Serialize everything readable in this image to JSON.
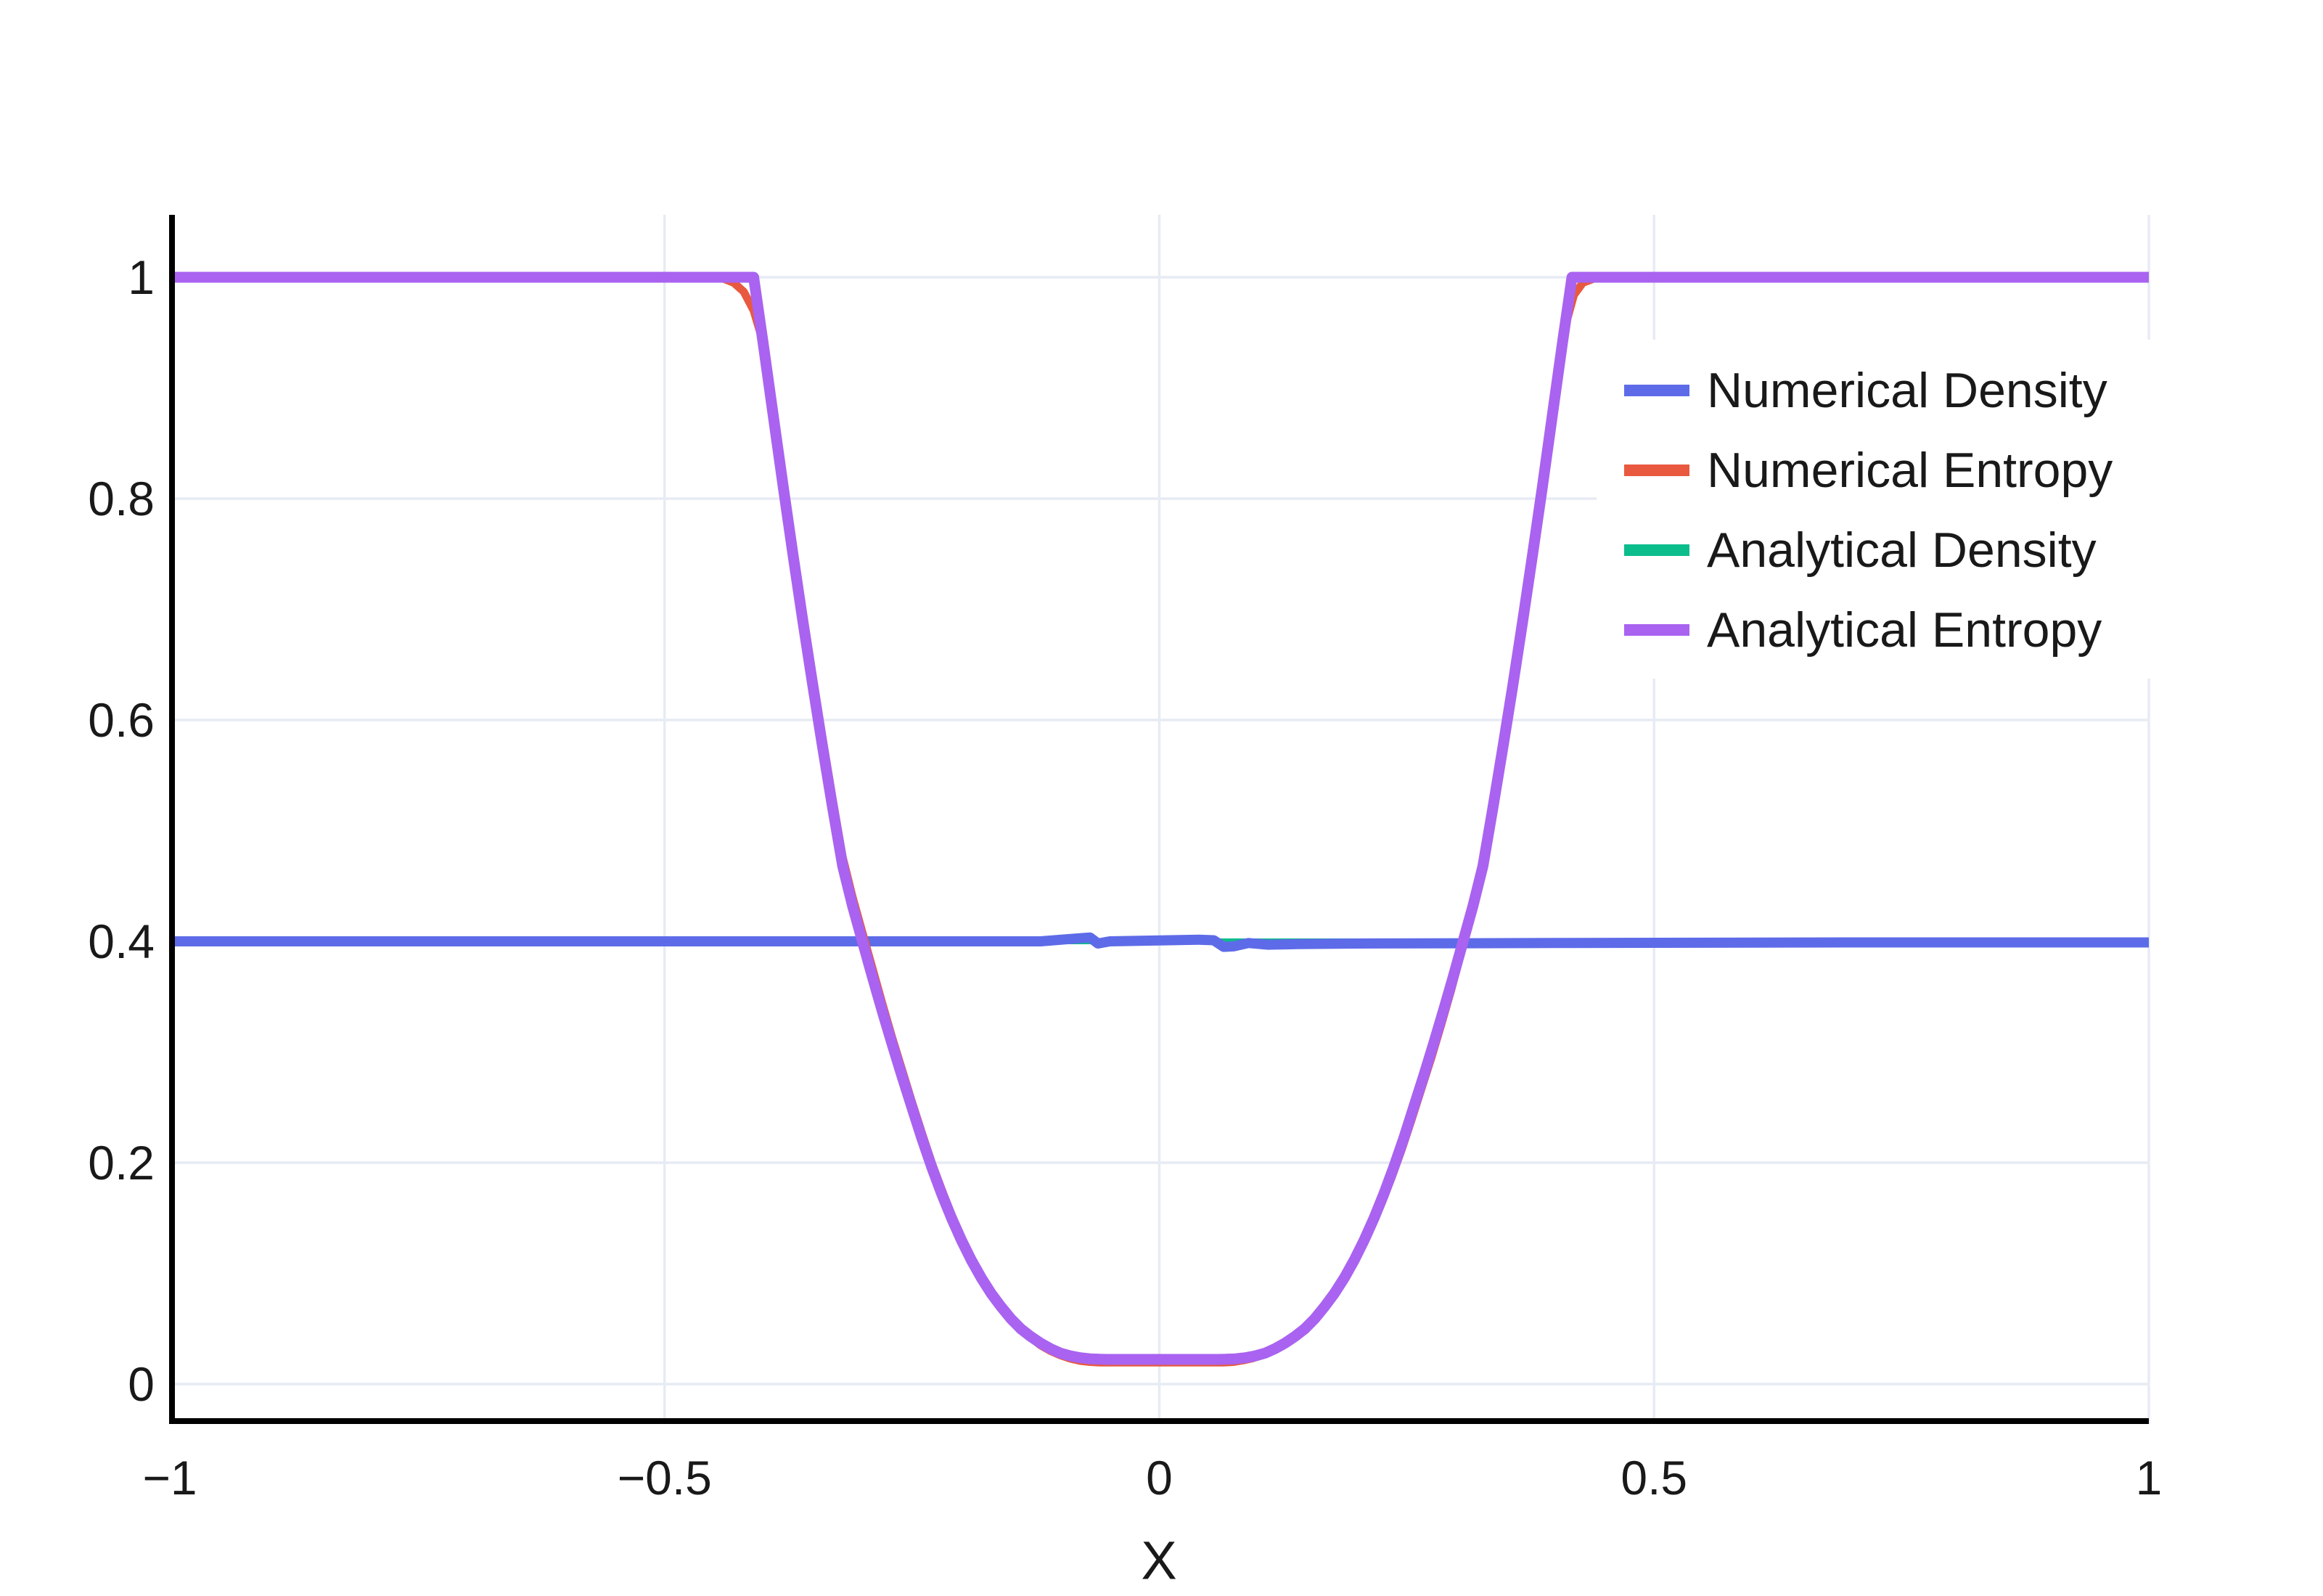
{
  "figure": {
    "background": "#ffffff",
    "axis_color": "#000000",
    "grid_color": "#e7ebf4",
    "tick_label_color": "#191919"
  },
  "chart_data": {
    "type": "line",
    "title": "",
    "xlabel": "X",
    "ylabel": "",
    "xlim": [
      -1,
      1
    ],
    "ylim": [
      0,
      1
    ],
    "grid": true,
    "frame": "left-bottom",
    "legend_position": "top-right-inside",
    "xticks": {
      "values": [
        -1,
        -0.5,
        0,
        0.5,
        1
      ],
      "labels": [
        "−1",
        "−0.5",
        "0",
        "0.5",
        "1"
      ]
    },
    "yticks": {
      "values": [
        0,
        0.2,
        0.4,
        0.6,
        0.8,
        1
      ],
      "labels": [
        "0",
        "0.2",
        "0.4",
        "0.6",
        "0.8",
        "1"
      ]
    },
    "draw_order": [
      2,
      0,
      1,
      3
    ],
    "series": [
      {
        "name": "Numerical Density",
        "color": "#5e6be8",
        "width": 14,
        "points": [
          [
            -1,
            0.4
          ],
          [
            -0.3,
            0.4
          ],
          [
            -0.12,
            0.4
          ],
          [
            -0.085,
            0.4025
          ],
          [
            -0.07,
            0.4035
          ],
          [
            -0.062,
            0.398
          ],
          [
            -0.05,
            0.4
          ],
          [
            -0.02,
            0.4005
          ],
          [
            0.01,
            0.401
          ],
          [
            0.04,
            0.4015
          ],
          [
            0.055,
            0.401
          ],
          [
            0.065,
            0.395
          ],
          [
            0.075,
            0.3955
          ],
          [
            0.09,
            0.3985
          ],
          [
            0.11,
            0.397
          ],
          [
            0.14,
            0.3975
          ],
          [
            0.2,
            0.398
          ],
          [
            0.4,
            0.3985
          ],
          [
            0.7,
            0.399
          ],
          [
            1,
            0.399
          ]
        ]
      },
      {
        "name": "Numerical Entropy",
        "color": "#e8593f",
        "width": 11,
        "points": [
          [
            -1,
            1
          ],
          [
            -0.45,
            1
          ],
          [
            -0.44,
            0.9985
          ],
          [
            -0.43,
            0.995
          ],
          [
            -0.42,
            0.987
          ],
          [
            -0.41,
            0.97
          ],
          [
            -0.4,
            0.94
          ],
          [
            -0.39,
            0.88
          ],
          [
            -0.38,
            0.818
          ],
          [
            -0.37,
            0.756
          ],
          [
            -0.36,
            0.696
          ],
          [
            -0.35,
            0.638
          ],
          [
            -0.34,
            0.582
          ],
          [
            -0.33,
            0.528
          ],
          [
            -0.32,
            0.476
          ],
          [
            -0.31,
            0.44
          ],
          [
            -0.3,
            0.408
          ],
          [
            -0.29,
            0.376
          ],
          [
            -0.28,
            0.344
          ],
          [
            -0.27,
            0.313
          ],
          [
            -0.26,
            0.284
          ],
          [
            -0.25,
            0.255
          ],
          [
            -0.24,
            0.227
          ],
          [
            -0.23,
            0.2
          ],
          [
            -0.22,
            0.176
          ],
          [
            -0.21,
            0.153
          ],
          [
            -0.2,
            0.133
          ],
          [
            -0.19,
            0.114
          ],
          [
            -0.18,
            0.098
          ],
          [
            -0.17,
            0.083
          ],
          [
            -0.16,
            0.07
          ],
          [
            -0.15,
            0.059
          ],
          [
            -0.14,
            0.049
          ],
          [
            -0.13,
            0.042
          ],
          [
            -0.12,
            0.035
          ],
          [
            -0.11,
            0.03
          ],
          [
            -0.1,
            0.026
          ],
          [
            -0.09,
            0.023
          ],
          [
            -0.08,
            0.021
          ],
          [
            -0.07,
            0.02
          ],
          [
            -0.06,
            0.0195
          ],
          [
            0.065,
            0.0195
          ],
          [
            0.075,
            0.02
          ],
          [
            0.085,
            0.0215
          ],
          [
            0.095,
            0.0235
          ],
          [
            0.105,
            0.0265
          ],
          [
            0.115,
            0.03
          ],
          [
            0.125,
            0.035
          ],
          [
            0.135,
            0.041
          ],
          [
            0.145,
            0.048
          ],
          [
            0.155,
            0.056
          ],
          [
            0.165,
            0.066
          ],
          [
            0.175,
            0.078
          ],
          [
            0.185,
            0.092
          ],
          [
            0.195,
            0.107
          ],
          [
            0.205,
            0.124
          ],
          [
            0.215,
            0.143
          ],
          [
            0.225,
            0.164
          ],
          [
            0.235,
            0.187
          ],
          [
            0.245,
            0.212
          ],
          [
            0.255,
            0.239
          ],
          [
            0.265,
            0.267
          ],
          [
            0.275,
            0.295
          ],
          [
            0.285,
            0.325
          ],
          [
            0.295,
            0.356
          ],
          [
            0.305,
            0.39
          ],
          [
            0.315,
            0.422
          ],
          [
            0.325,
            0.458
          ],
          [
            0.335,
            0.508
          ],
          [
            0.345,
            0.562
          ],
          [
            0.355,
            0.618
          ],
          [
            0.365,
            0.676
          ],
          [
            0.375,
            0.736
          ],
          [
            0.385,
            0.798
          ],
          [
            0.395,
            0.862
          ],
          [
            0.403,
            0.915
          ],
          [
            0.411,
            0.958
          ],
          [
            0.419,
            0.984
          ],
          [
            0.428,
            0.995
          ],
          [
            0.44,
            0.999
          ],
          [
            0.46,
            1
          ],
          [
            1,
            1
          ]
        ]
      },
      {
        "name": "Analytical Density",
        "color": "#0cbd8c",
        "width": 8,
        "points": [
          [
            -1,
            0.4
          ],
          [
            1,
            0.4
          ]
        ]
      },
      {
        "name": "Analytical Entropy",
        "color": "#a963f0",
        "width": 15,
        "points": [
          [
            -1,
            1
          ],
          [
            -0.41,
            1
          ],
          [
            -0.4,
            0.938
          ],
          [
            -0.39,
            0.874
          ],
          [
            -0.38,
            0.81
          ],
          [
            -0.37,
            0.748
          ],
          [
            -0.36,
            0.688
          ],
          [
            -0.35,
            0.63
          ],
          [
            -0.34,
            0.574
          ],
          [
            -0.33,
            0.52
          ],
          [
            -0.32,
            0.468
          ],
          [
            -0.31,
            0.432
          ],
          [
            -0.3,
            0.4
          ],
          [
            -0.29,
            0.368
          ],
          [
            -0.28,
            0.337
          ],
          [
            -0.27,
            0.307
          ],
          [
            -0.26,
            0.278
          ],
          [
            -0.25,
            0.25
          ],
          [
            -0.24,
            0.222
          ],
          [
            -0.23,
            0.196
          ],
          [
            -0.22,
            0.172
          ],
          [
            -0.21,
            0.15
          ],
          [
            -0.2,
            0.13
          ],
          [
            -0.19,
            0.112
          ],
          [
            -0.18,
            0.096
          ],
          [
            -0.17,
            0.082
          ],
          [
            -0.16,
            0.07
          ],
          [
            -0.15,
            0.059
          ],
          [
            -0.14,
            0.05
          ],
          [
            -0.13,
            0.043
          ],
          [
            -0.12,
            0.037
          ],
          [
            -0.11,
            0.032
          ],
          [
            -0.1,
            0.028
          ],
          [
            -0.09,
            0.0255
          ],
          [
            -0.08,
            0.0238
          ],
          [
            -0.07,
            0.0228
          ],
          [
            -0.06,
            0.0224
          ],
          [
            -0.053,
            0.0223
          ],
          [
            0.06,
            0.0223
          ],
          [
            0.067,
            0.0224
          ],
          [
            0.077,
            0.0228
          ],
          [
            0.087,
            0.0238
          ],
          [
            0.097,
            0.0255
          ],
          [
            0.107,
            0.028
          ],
          [
            0.117,
            0.032
          ],
          [
            0.127,
            0.037
          ],
          [
            0.137,
            0.043
          ],
          [
            0.147,
            0.05
          ],
          [
            0.157,
            0.059
          ],
          [
            0.167,
            0.07
          ],
          [
            0.177,
            0.082
          ],
          [
            0.187,
            0.096
          ],
          [
            0.197,
            0.112
          ],
          [
            0.207,
            0.13
          ],
          [
            0.217,
            0.15
          ],
          [
            0.227,
            0.172
          ],
          [
            0.237,
            0.196
          ],
          [
            0.247,
            0.222
          ],
          [
            0.257,
            0.25
          ],
          [
            0.267,
            0.278
          ],
          [
            0.277,
            0.307
          ],
          [
            0.287,
            0.337
          ],
          [
            0.297,
            0.368
          ],
          [
            0.307,
            0.4
          ],
          [
            0.317,
            0.432
          ],
          [
            0.327,
            0.468
          ],
          [
            0.337,
            0.52
          ],
          [
            0.347,
            0.574
          ],
          [
            0.357,
            0.63
          ],
          [
            0.367,
            0.688
          ],
          [
            0.377,
            0.748
          ],
          [
            0.387,
            0.81
          ],
          [
            0.397,
            0.874
          ],
          [
            0.407,
            0.938
          ],
          [
            0.417,
            1
          ],
          [
            1,
            1
          ]
        ]
      }
    ]
  },
  "legend": {
    "items": [
      "Numerical Density",
      "Numerical Entropy",
      "Analytical Density",
      "Analytical Entropy"
    ]
  }
}
